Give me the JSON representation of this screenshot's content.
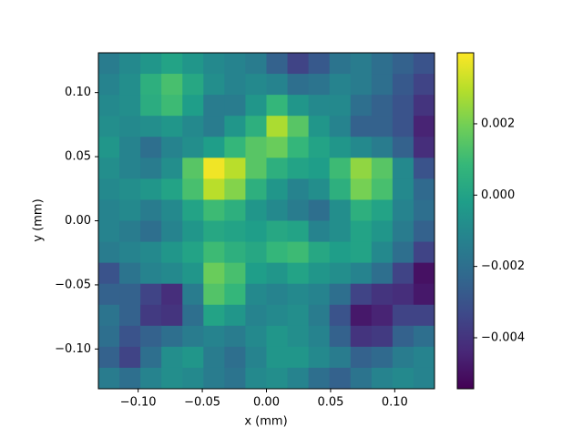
{
  "chart_data": {
    "type": "heatmap",
    "colormap": "viridis",
    "xlabel": "x (mm)",
    "ylabel": "y (mm)",
    "xlim": [
      -0.131,
      0.131
    ],
    "ylim": [
      -0.131,
      0.131
    ],
    "xticks": [
      {
        "value": -0.1,
        "label": "−0.10"
      },
      {
        "value": -0.05,
        "label": "−0.05"
      },
      {
        "value": 0,
        "label": "0.00"
      },
      {
        "value": 0.05,
        "label": "0.05"
      },
      {
        "value": 0.1,
        "label": "0.10"
      }
    ],
    "yticks": [
      {
        "value": -0.1,
        "label": "−0.10"
      },
      {
        "value": -0.05,
        "label": "−0.05"
      },
      {
        "value": 0,
        "label": "0.00"
      },
      {
        "value": 0.05,
        "label": "0.05"
      },
      {
        "value": 0.1,
        "label": "0.10"
      }
    ],
    "clim": [
      -0.00543,
      0.00399
    ],
    "cticks": [
      {
        "value": -0.004,
        "label": "−0.004"
      },
      {
        "value": -0.002,
        "label": "−0.002"
      },
      {
        "value": 0,
        "label": "0.000"
      },
      {
        "value": 0.002,
        "label": "0.002"
      }
    ],
    "values": [
      [
        -0.0015,
        -0.001,
        -0.0005,
        0.0,
        -0.0005,
        -0.001,
        -0.0012,
        -0.0015,
        -0.0025,
        -0.0035,
        -0.0028,
        -0.0018,
        -0.0015,
        -0.002,
        -0.0025,
        -0.003
      ],
      [
        -0.0012,
        -0.0008,
        0.0005,
        0.0012,
        0.0002,
        -0.0008,
        -0.0012,
        -0.001,
        -0.0012,
        -0.002,
        -0.0018,
        -0.0012,
        -0.0015,
        -0.002,
        -0.0028,
        -0.0035
      ],
      [
        -0.001,
        -0.0008,
        0.0004,
        0.001,
        -0.0002,
        -0.0015,
        -0.0015,
        -0.0005,
        0.0008,
        -0.0005,
        -0.001,
        -0.001,
        -0.002,
        -0.0025,
        -0.003,
        -0.004
      ],
      [
        -0.0008,
        -0.001,
        -0.0008,
        -0.0005,
        -0.001,
        -0.0015,
        -0.0005,
        0.0005,
        0.0028,
        0.0015,
        -0.0005,
        -0.0012,
        -0.0025,
        -0.0025,
        -0.003,
        -0.0045
      ],
      [
        -0.0005,
        -0.0012,
        -0.002,
        -0.0012,
        -0.0008,
        -0.0002,
        0.0008,
        0.0015,
        0.0018,
        0.0008,
        0.0,
        -0.0005,
        -0.001,
        -0.0015,
        -0.0025,
        -0.0042
      ],
      [
        -0.0008,
        -0.0012,
        -0.0015,
        -0.0008,
        0.0015,
        0.0038,
        0.003,
        0.0015,
        0.0005,
        0.0,
        -0.0002,
        0.001,
        0.0024,
        0.0015,
        -0.001,
        -0.003
      ],
      [
        -0.001,
        -0.0008,
        -0.0005,
        0.0,
        0.0012,
        0.003,
        0.0022,
        0.0005,
        -0.0005,
        -0.0012,
        -0.0008,
        0.0005,
        0.002,
        0.0012,
        -0.001,
        -0.0022
      ],
      [
        -0.0012,
        -0.001,
        -0.0015,
        -0.001,
        0.0,
        0.001,
        0.0005,
        -0.0005,
        -0.001,
        -0.0015,
        -0.002,
        -0.0008,
        0.0005,
        0.0,
        -0.0012,
        -0.002
      ],
      [
        -0.0012,
        -0.0015,
        -0.002,
        -0.0012,
        -0.0005,
        0.0002,
        0.0,
        -0.0002,
        0.0002,
        0.0,
        -0.0012,
        -0.0008,
        0.0,
        -0.0005,
        -0.0015,
        -0.0025
      ],
      [
        -0.0015,
        -0.0012,
        -0.001,
        -0.0005,
        0.0,
        0.001,
        0.0005,
        0.0002,
        0.0008,
        0.001,
        0.0002,
        -0.0002,
        0.0,
        -0.001,
        -0.002,
        -0.0035
      ],
      [
        -0.003,
        -0.0018,
        -0.0012,
        -0.001,
        -0.0005,
        0.0018,
        0.0012,
        -0.0002,
        -0.0005,
        0.0,
        -0.0005,
        -0.0008,
        -0.0012,
        -0.002,
        -0.0035,
        -0.005
      ],
      [
        -0.0025,
        -0.0025,
        -0.0035,
        -0.0042,
        -0.0015,
        0.0014,
        0.0008,
        -0.001,
        -0.0012,
        -0.001,
        -0.0012,
        -0.002,
        -0.0035,
        -0.004,
        -0.0042,
        -0.0048
      ],
      [
        -0.0018,
        -0.0025,
        -0.0038,
        -0.004,
        -0.002,
        0.0,
        -0.0005,
        -0.0012,
        -0.001,
        -0.0008,
        -0.0015,
        -0.003,
        -0.0048,
        -0.0045,
        -0.0035,
        -0.0035
      ],
      [
        -0.002,
        -0.003,
        -0.0025,
        -0.002,
        -0.0015,
        -0.0012,
        -0.0015,
        -0.001,
        -0.0005,
        -0.0008,
        -0.0012,
        -0.0025,
        -0.004,
        -0.0038,
        -0.0025,
        -0.002
      ],
      [
        -0.0025,
        -0.0035,
        -0.002,
        -0.0008,
        -0.0005,
        -0.0015,
        -0.002,
        -0.0012,
        -0.0005,
        -0.0005,
        -0.001,
        -0.0015,
        -0.0025,
        -0.0022,
        -0.0015,
        -0.0012
      ],
      [
        -0.0015,
        -0.002,
        -0.0012,
        -0.0008,
        -0.001,
        -0.0015,
        -0.0018,
        -0.001,
        -0.0008,
        -0.0012,
        -0.002,
        -0.0025,
        -0.0018,
        -0.0012,
        -0.001,
        -0.0012
      ]
    ]
  }
}
